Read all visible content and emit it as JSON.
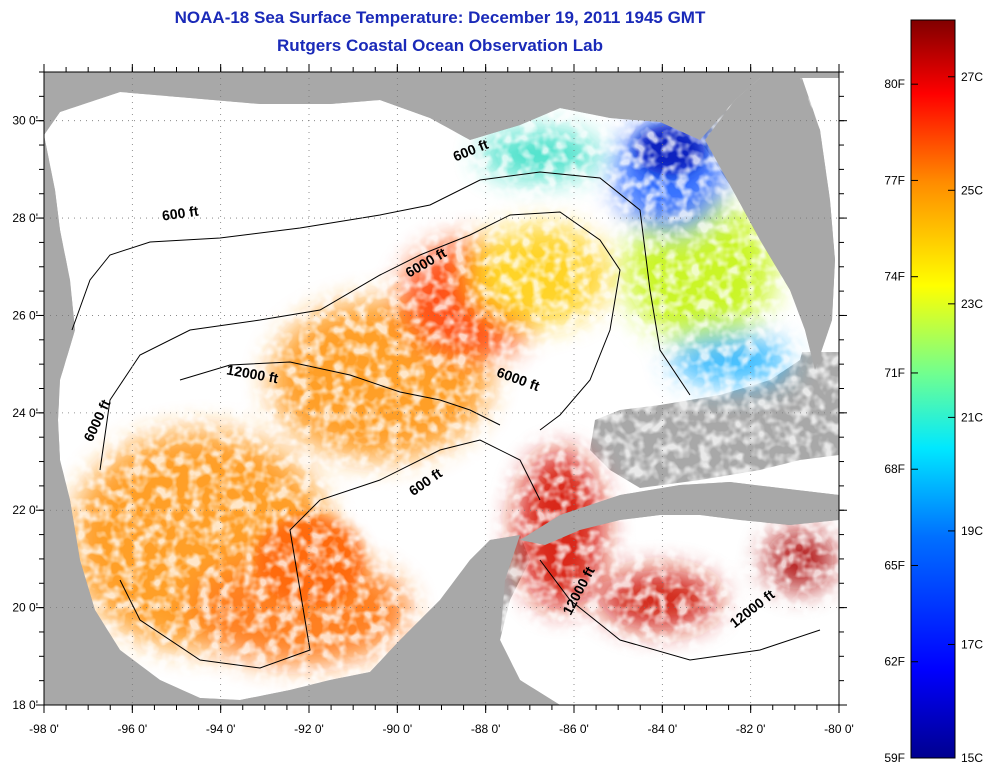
{
  "header": {
    "title": "NOAA-18 Sea Surface Temperature:  December 19, 2011 1945 GMT",
    "subtitle": "Rutgers Coastal Ocean Observation Lab"
  },
  "map": {
    "lon_range": [
      -98,
      -80
    ],
    "lat_range": [
      18,
      31
    ],
    "lon_ticks": [
      "-98 0'",
      "-96 0'",
      "-94 0'",
      "-92 0'",
      "-90 0'",
      "-88 0'",
      "-86 0'",
      "-84 0'",
      "-82 0'",
      "-80 0'"
    ],
    "lat_ticks": [
      "18 0'",
      "20 0'",
      "22 0'",
      "24 0'",
      "26 0'",
      "28 0'",
      "30 0'"
    ],
    "colors": {
      "land": "#a8a8a8",
      "no_data": "#ffffff",
      "contour": "#000000",
      "grid": "#777777"
    },
    "contour_labels": [
      {
        "text": "600 ft",
        "lon": -94.9,
        "lat": 28.0,
        "angle": -8
      },
      {
        "text": "600 ft",
        "lon": -88.3,
        "lat": 29.3,
        "angle": -22
      },
      {
        "text": "6000 ft",
        "lon": -89.3,
        "lat": 27.0,
        "angle": -30
      },
      {
        "text": "12000 ft",
        "lon": -93.3,
        "lat": 24.7,
        "angle": 10
      },
      {
        "text": "6000 ft",
        "lon": -87.3,
        "lat": 24.6,
        "angle": 20
      },
      {
        "text": "6000 ft",
        "lon": -96.7,
        "lat": 23.8,
        "angle": -65
      },
      {
        "text": "600 ft",
        "lon": -89.3,
        "lat": 22.5,
        "angle": -35
      },
      {
        "text": "12000 ft",
        "lon": -85.8,
        "lat": 20.3,
        "angle": -62
      },
      {
        "text": "12000 ft",
        "lon": -81.9,
        "lat": 19.9,
        "angle": -38
      }
    ]
  },
  "colorbar": {
    "fahrenheit_labels": [
      "80F",
      "77F",
      "74F",
      "71F",
      "68F",
      "65F",
      "62F",
      "59F"
    ],
    "celsius_labels": [
      "27C",
      "25C",
      "23C",
      "21C",
      "19C",
      "17C",
      "15C"
    ],
    "colors": [
      "#000080",
      "#0000ff",
      "#0080ff",
      "#00ffff",
      "#80ff80",
      "#ffff00",
      "#ff8000",
      "#ff0000",
      "#800000"
    ]
  },
  "chart_data": {
    "type": "heatmap",
    "title": "NOAA-18 Sea Surface Temperature:  December 19, 2011 1945 GMT",
    "subtitle": "Rutgers Coastal Ocean Observation Lab",
    "xlabel": "",
    "ylabel": "",
    "xlim": [
      -98,
      -80
    ],
    "ylim": [
      18,
      31
    ],
    "color_scale": {
      "min_F": 59,
      "max_F": 82,
      "min_C": 15,
      "max_C": 28
    },
    "regions": [
      {
        "name": "",
        "lon": -83.2,
        "lat": 29.3,
        "temp_C": 15.5
      },
      {
        "name": "",
        "lon": -83.5,
        "lat": 27.3,
        "temp_C": 22.5
      },
      {
        "name": "",
        "lon": -82.8,
        "lat": 25.2,
        "temp_C": 19.5
      },
      {
        "name": "",
        "lon": -88.3,
        "lat": 26.6,
        "temp_C": 26.5
      },
      {
        "name": "",
        "lon": -93.5,
        "lat": 22.5,
        "temp_C": 24.5
      },
      {
        "name": "",
        "lon": -92.0,
        "lat": 21.0,
        "temp_C": 25.5
      },
      {
        "name": "",
        "lon": -85.7,
        "lat": 21.5,
        "temp_C": 27.5
      },
      {
        "name": "",
        "lon": -81.5,
        "lat": 20.5,
        "temp_C": 27.5
      },
      {
        "name": "",
        "lon": -85.8,
        "lat": 27.0,
        "temp_C": 23.5
      },
      {
        "name": "",
        "lon": -87.0,
        "lat": 29.4,
        "temp_C": 20.5
      }
    ]
  }
}
